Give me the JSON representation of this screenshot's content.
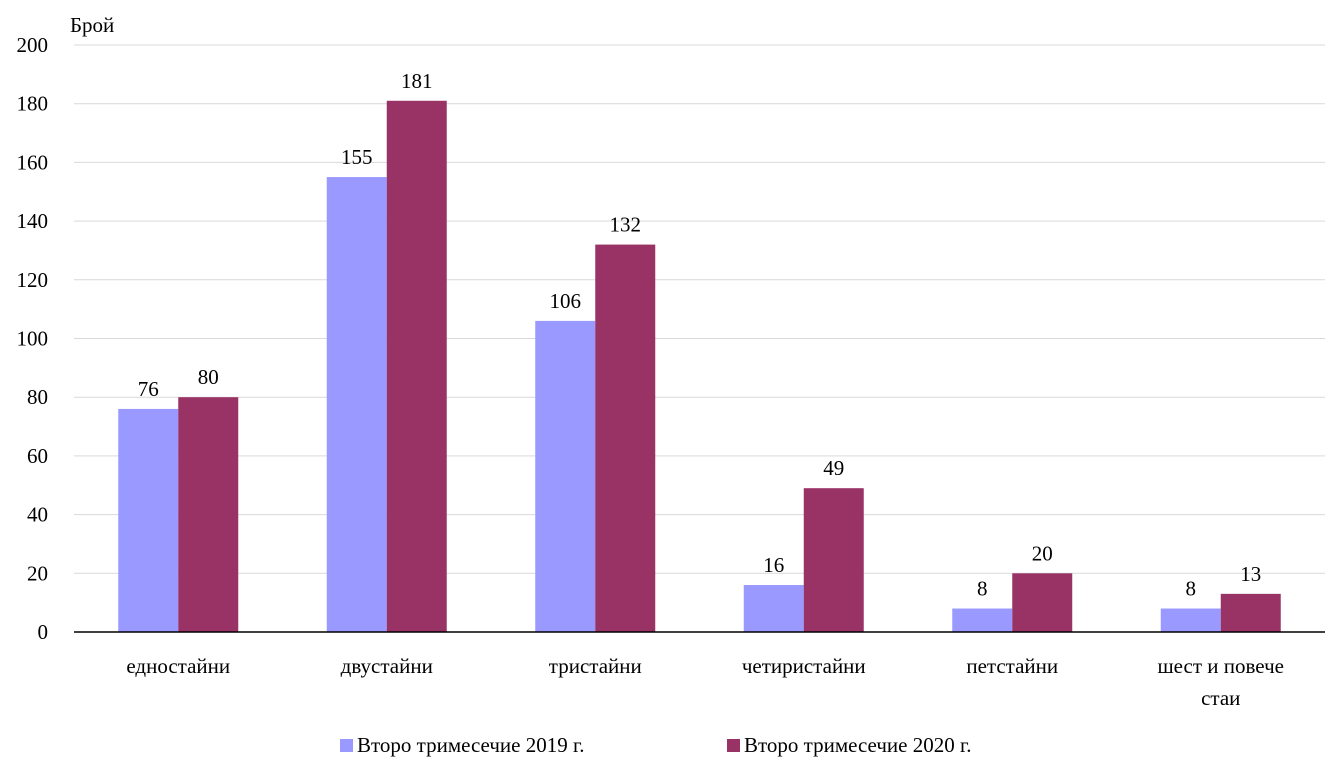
{
  "chart_data": {
    "type": "bar",
    "ylabel": "Брой",
    "xlabel": "",
    "ylim": [
      0,
      200
    ],
    "yticks": [
      0,
      20,
      40,
      60,
      80,
      100,
      120,
      140,
      160,
      180,
      200
    ],
    "grid": true,
    "legend_position": "bottom",
    "categories": [
      [
        "едностайни"
      ],
      [
        "двустайни"
      ],
      [
        "тристайни"
      ],
      [
        "четиристайни"
      ],
      [
        "петстайни"
      ],
      [
        "шест и повече",
        "стаи"
      ]
    ],
    "series": [
      {
        "name": "Второ тримесечие 2019 г.",
        "color": "#9999ff",
        "values": [
          76,
          155,
          106,
          16,
          8,
          8
        ]
      },
      {
        "name": "Второ тримесечие 2020 г.",
        "color": "#993366",
        "values": [
          80,
          181,
          132,
          49,
          20,
          13
        ]
      }
    ]
  }
}
